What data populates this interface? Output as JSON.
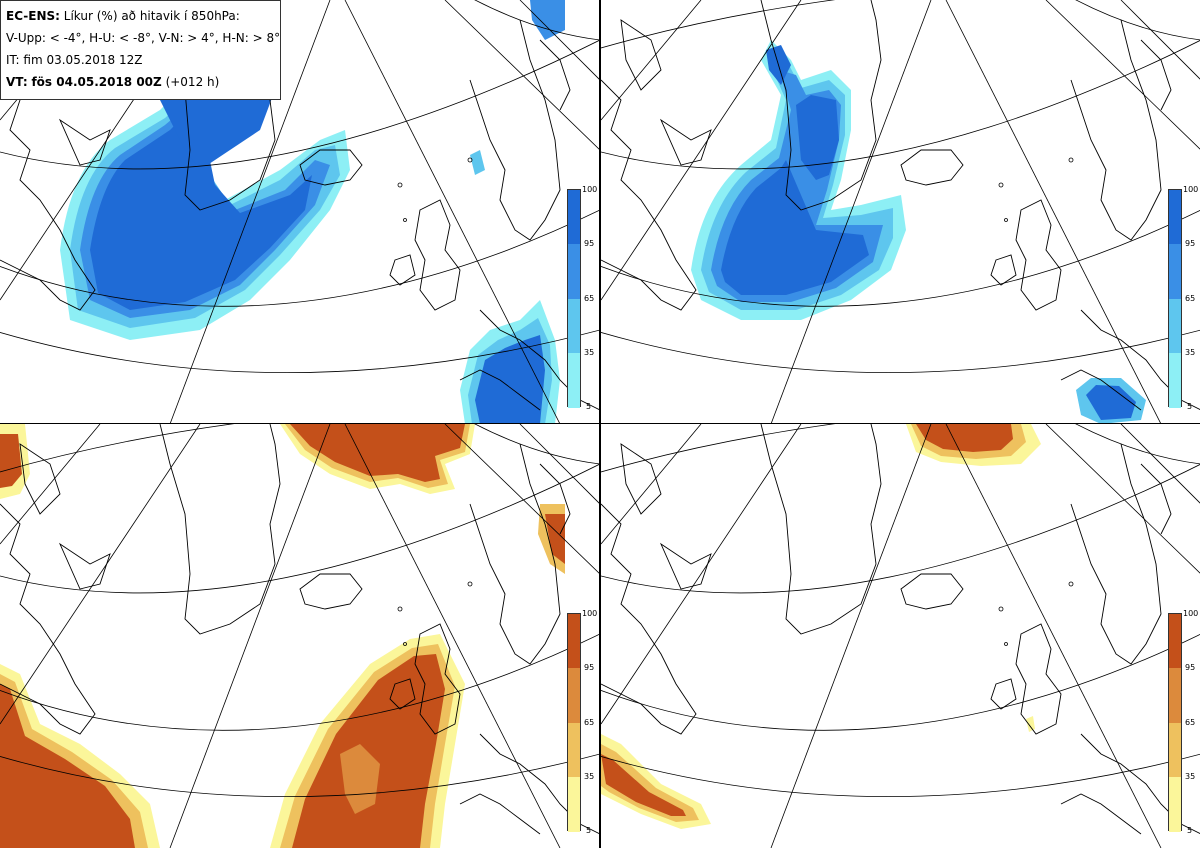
{
  "header": {
    "model": "EC-ENS:",
    "title_rest": "Líkur (%) að hitavik í 850hPa:",
    "thresholds": "V-Upp: < -4°, H-U: < -8°, V-N: > 4°, H-N: > 8°",
    "it_label": "IT: fim 03.05.2018 12Z",
    "vt_prefix": "VT:",
    "vt_bold": "fös 04.05.2018 00Z",
    "vt_lead": "(+012 h)"
  },
  "colorbar_levels": [
    "100",
    "95",
    "65",
    "35",
    "5"
  ],
  "colors": {
    "cold_100": "#1f6bd6",
    "cold_95": "#3a8fe6",
    "cold_65": "#5ec6ee",
    "cold_35": "#8deff5",
    "warm_100": "#c4501a",
    "warm_95": "#dc8a3c",
    "warm_65": "#eec15e",
    "warm_35": "#fbf69a",
    "coast": "#000000",
    "grid": "#000000"
  },
  "panels": [
    {
      "id": "top-left",
      "variable": "cold anomaly < -4°"
    },
    {
      "id": "top-right",
      "variable": "cold anomaly < -8°"
    },
    {
      "id": "bottom-left",
      "variable": "warm anomaly > 4°"
    },
    {
      "id": "bottom-right",
      "variable": "warm anomaly > 8°"
    }
  ]
}
